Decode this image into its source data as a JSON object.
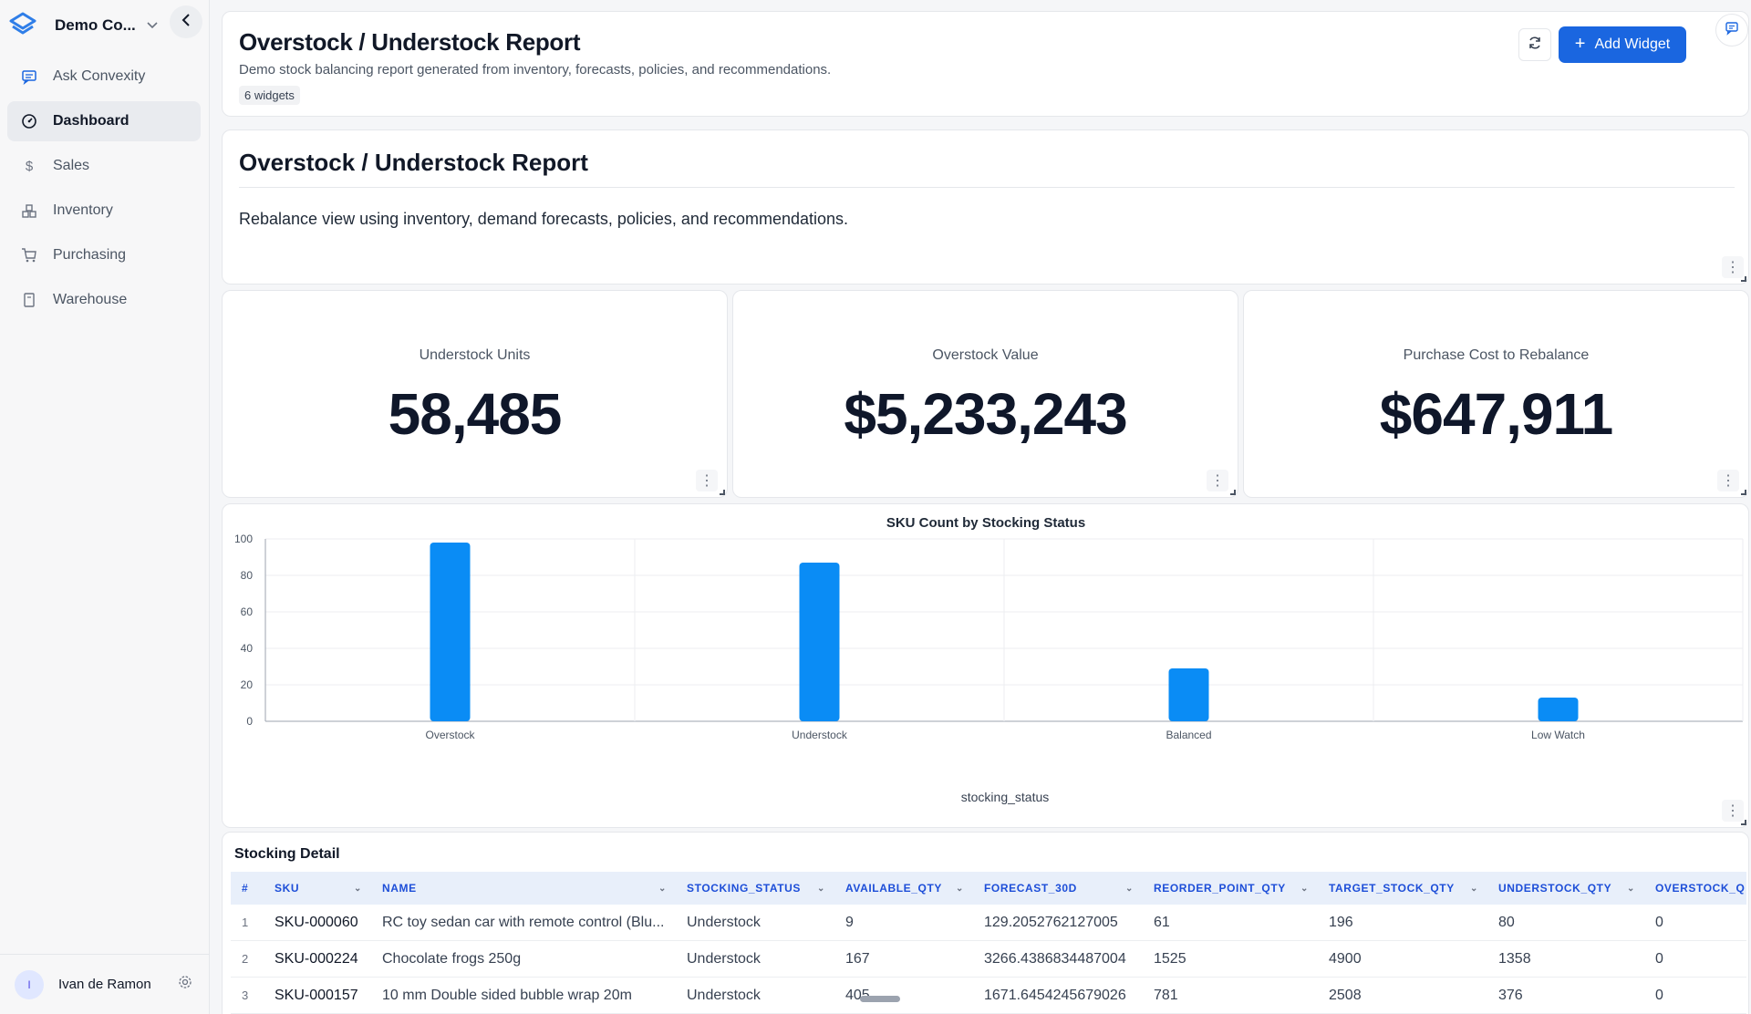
{
  "sidebar": {
    "org_name": "Demo Co...",
    "items": [
      {
        "label": "Ask Convexity",
        "icon": "chat-icon"
      },
      {
        "label": "Dashboard",
        "icon": "dashboard-icon",
        "active": true
      },
      {
        "label": "Sales",
        "icon": "dollar-icon"
      },
      {
        "label": "Inventory",
        "icon": "boxes-icon"
      },
      {
        "label": "Purchasing",
        "icon": "cart-icon"
      },
      {
        "label": "Warehouse",
        "icon": "building-icon"
      }
    ],
    "user": {
      "initial": "I",
      "name": "Ivan de Ramon"
    }
  },
  "header": {
    "title": "Overstock / Understock Report",
    "subtitle": "Demo stock balancing report generated from inventory, forecasts, policies, and recommendations.",
    "badge": "6 widgets",
    "add_widget_label": "Add Widget"
  },
  "text_widget": {
    "title": "Overstock / Understock Report",
    "body": "Rebalance view using inventory, demand forecasts, policies, and recommendations."
  },
  "kpis": [
    {
      "label": "Understock Units",
      "value": "58,485"
    },
    {
      "label": "Overstock Value",
      "value": "$5,233,243"
    },
    {
      "label": "Purchase Cost to Rebalance",
      "value": "$647,911"
    }
  ],
  "chart_data": {
    "type": "bar",
    "title": "SKU Count by Stocking Status",
    "xlabel": "stocking_status",
    "ylabel": "",
    "categories": [
      "Overstock",
      "Understock",
      "Balanced",
      "Low Watch"
    ],
    "values": [
      98,
      87,
      29,
      13
    ],
    "ylim": [
      0,
      100
    ],
    "yticks": [
      0,
      20,
      40,
      60,
      80,
      100
    ],
    "grid": true,
    "color": "#0a8cf5"
  },
  "table": {
    "title": "Stocking Detail",
    "columns": [
      "#",
      "SKU",
      "NAME",
      "STOCKING_STATUS",
      "AVAILABLE_QTY",
      "FORECAST_30D",
      "REORDER_POINT_QTY",
      "TARGET_STOCK_QTY",
      "UNDERSTOCK_QTY",
      "OVERSTOCK_Q"
    ],
    "rows": [
      [
        "1",
        "SKU-000060",
        "RC toy sedan car with remote control (Blu...",
        "Understock",
        "9",
        "129.2052762127005",
        "61",
        "196",
        "80",
        "0"
      ],
      [
        "2",
        "SKU-000224",
        "Chocolate frogs 250g",
        "Understock",
        "167",
        "3266.4386834487004",
        "1525",
        "4900",
        "1358",
        "0"
      ],
      [
        "3",
        "SKU-000157",
        "10 mm Double sided bubble wrap 20m",
        "Understock",
        "405",
        "1671.6454245679026",
        "781",
        "2508",
        "376",
        "0"
      ]
    ]
  }
}
